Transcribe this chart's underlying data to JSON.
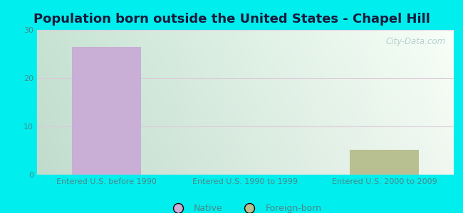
{
  "title": "Population born outside the United States - Chapel Hill",
  "categories": [
    "Entered U.S. before 1990",
    "Entered U.S. 1990 to 1999",
    "Entered U.S. 2000 to 2009"
  ],
  "native_values": [
    26.5,
    0,
    0
  ],
  "foreign_values": [
    0,
    0,
    5.2
  ],
  "native_color": "#c9aed6",
  "foreign_color": "#b8bf90",
  "ylim": [
    0,
    30
  ],
  "yticks": [
    0,
    10,
    20,
    30
  ],
  "bar_width": 0.5,
  "outer_bg": "#00eeee",
  "grid_color": "#ddc8dd",
  "watermark": "City-Data.com",
  "legend_native": "Native",
  "legend_foreign": "Foreign-born",
  "title_fontsize": 13,
  "title_color": "#1a1a3a",
  "tick_label_color": "#4a8888",
  "tick_fontsize": 8,
  "watermark_color": "#aac8cc",
  "bg_left": "#c8ddd8",
  "bg_right": "#f0f8f4"
}
